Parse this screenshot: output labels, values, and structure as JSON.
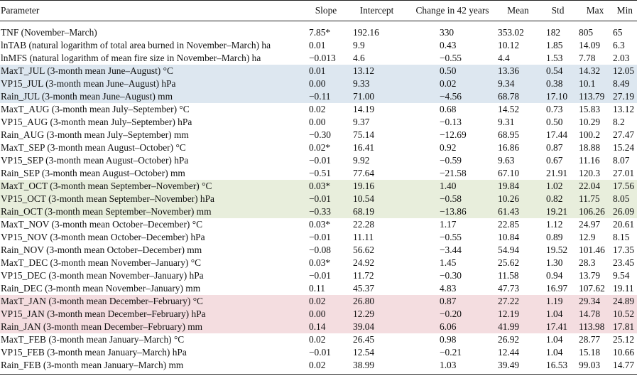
{
  "columns": [
    "Parameter",
    "Slope",
    "Intercept",
    "Change in 42 years",
    "Mean",
    "Std",
    "Max",
    "Min"
  ],
  "band_colors": {
    "blue": "#dde7f0",
    "green": "#e8eedc",
    "red": "#f4dde0"
  },
  "rows": [
    {
      "band": "",
      "cells": [
        "TNF (November–March)",
        "7.85*",
        "192.16",
        "330",
        "353.02",
        "182",
        "805",
        "65"
      ]
    },
    {
      "band": "",
      "cells": [
        "lnTAB (natural logarithm of total area burned in November–March) ha",
        "0.01",
        "9.9",
        "0.43",
        "10.12",
        "1.85",
        "14.09",
        "6.3"
      ]
    },
    {
      "band": "",
      "cells": [
        "lnMFS (natural logarithm of mean fire size in November–March) ha",
        "−0.013",
        "4.6",
        "−0.55",
        "4.4",
        "1.53",
        "7.78",
        "2.03"
      ]
    },
    {
      "band": "blue",
      "cells": [
        "MaxT_JUL (3-month mean June–August) °C",
        "0.01",
        "13.12",
        "0.50",
        "13.36",
        "0.54",
        "14.32",
        "12.05"
      ]
    },
    {
      "band": "blue",
      "cells": [
        "VP15_JUL (3-month mean June–August) hPa",
        "0.00",
        "9.33",
        "0.02",
        "9.34",
        "0.38",
        "10.1",
        "8.49"
      ]
    },
    {
      "band": "blue",
      "cells": [
        "Rain_JUL (3-month mean June–August) mm",
        "−0.11",
        "71.00",
        "−4.56",
        "68.78",
        "17.10",
        "113.79",
        "27.19"
      ]
    },
    {
      "band": "",
      "cells": [
        "MaxT_AUG (3-month mean July–September) °C",
        "0.02",
        "14.19",
        "0.68",
        "14.52",
        "0.73",
        "15.83",
        "13.12"
      ]
    },
    {
      "band": "",
      "cells": [
        "VP15_AUG (3-month mean July–September) hPa",
        "0.00",
        "9.37",
        "−0.13",
        "9.31",
        "0.50",
        "10.29",
        "8.2"
      ]
    },
    {
      "band": "",
      "cells": [
        "Rain_AUG (3-month mean July–September) mm",
        "−0.30",
        "75.14",
        "−12.69",
        "68.95",
        "17.44",
        "100.2",
        "27.47"
      ]
    },
    {
      "band": "",
      "cells": [
        "MaxT_SEP (3-month mean August–October) °C",
        "0.02*",
        "16.41",
        "0.92",
        "16.86",
        "0.87",
        "18.88",
        "15.24"
      ]
    },
    {
      "band": "",
      "cells": [
        "VP15_SEP (3-month mean August–October) hPa",
        "−0.01",
        "9.92",
        "−0.59",
        "9.63",
        "0.67",
        "11.16",
        "8.07"
      ]
    },
    {
      "band": "",
      "cells": [
        "Rain_SEP (3-month mean August–October) mm",
        "−0.51",
        "77.64",
        "−21.58",
        "67.10",
        "21.91",
        "120.3",
        "27.01"
      ]
    },
    {
      "band": "green",
      "cells": [
        "MaxT_OCT (3-month mean September–November) °C",
        "0.03*",
        "19.16",
        "1.40",
        "19.84",
        "1.02",
        "22.04",
        "17.56"
      ]
    },
    {
      "band": "green",
      "cells": [
        "VP15_OCT (3-month mean September–November) hPa",
        "−0.01",
        "10.54",
        "−0.58",
        "10.26",
        "0.82",
        "11.75",
        "8.05"
      ]
    },
    {
      "band": "green",
      "cells": [
        "Rain_OCT (3-month mean September–November) mm",
        "−0.33",
        "68.19",
        "−13.86",
        "61.43",
        "19.21",
        "106.26",
        "26.09"
      ]
    },
    {
      "band": "",
      "cells": [
        "MaxT_NOV (3-month mean October–December) °C",
        "0.03*",
        "22.28",
        "1.17",
        "22.85",
        "1.12",
        "24.97",
        "20.61"
      ]
    },
    {
      "band": "",
      "cells": [
        "VP15_NOV (3-month mean October–December) hPa",
        "−0.01",
        "11.11",
        "−0.55",
        "10.84",
        "0.89",
        "12.9",
        "8.15"
      ]
    },
    {
      "band": "",
      "cells": [
        "Rain_NOV (3-month mean October–December) mm",
        "−0.08",
        "56.62",
        "−3.44",
        "54.94",
        "19.52",
        "101.46",
        "17.35"
      ]
    },
    {
      "band": "",
      "cells": [
        "MaxT_DEC (3-month mean November–January) °C",
        "0.03*",
        "24.92",
        "1.45",
        "25.62",
        "1.30",
        "28.3",
        "23.45"
      ]
    },
    {
      "band": "",
      "cells": [
        "VP15_DEC (3-month mean November–January) hPa",
        "−0.01",
        "11.72",
        "−0.30",
        "11.58",
        "0.94",
        "13.79",
        "9.54"
      ]
    },
    {
      "band": "",
      "cells": [
        "Rain_DEC (3-month mean November–January) mm",
        "0.11",
        "45.37",
        "4.83",
        "47.73",
        "16.97",
        "107.62",
        "19.11"
      ]
    },
    {
      "band": "red",
      "cells": [
        "MaxT_JAN (3-month mean December–February) °C",
        "0.02",
        "26.80",
        "0.87",
        "27.22",
        "1.19",
        "29.34",
        "24.89"
      ]
    },
    {
      "band": "red",
      "cells": [
        "VP15_JAN (3-month mean December–February) hPa",
        "0.00",
        "12.29",
        "−0.20",
        "12.19",
        "1.04",
        "14.78",
        "10.52"
      ]
    },
    {
      "band": "red",
      "cells": [
        "Rain_JAN (3-month mean December–February) mm",
        "0.14",
        "39.04",
        "6.06",
        "41.99",
        "17.41",
        "113.98",
        "17.81"
      ]
    },
    {
      "band": "",
      "cells": [
        "MaxT_FEB (3-month mean January–March) °C",
        "0.02",
        "26.45",
        "0.98",
        "26.92",
        "1.04",
        "28.77",
        "25.12"
      ]
    },
    {
      "band": "",
      "cells": [
        "VP15_FEB (3-month mean January–March) hPa",
        "−0.01",
        "12.54",
        "−0.21",
        "12.44",
        "1.04",
        "15.18",
        "10.66"
      ]
    },
    {
      "band": "",
      "cells": [
        "Rain_FEB (3-month mean January–March) mm",
        "0.02",
        "38.99",
        "1.03",
        "39.49",
        "16.53",
        "99.03",
        "14.77"
      ]
    }
  ]
}
